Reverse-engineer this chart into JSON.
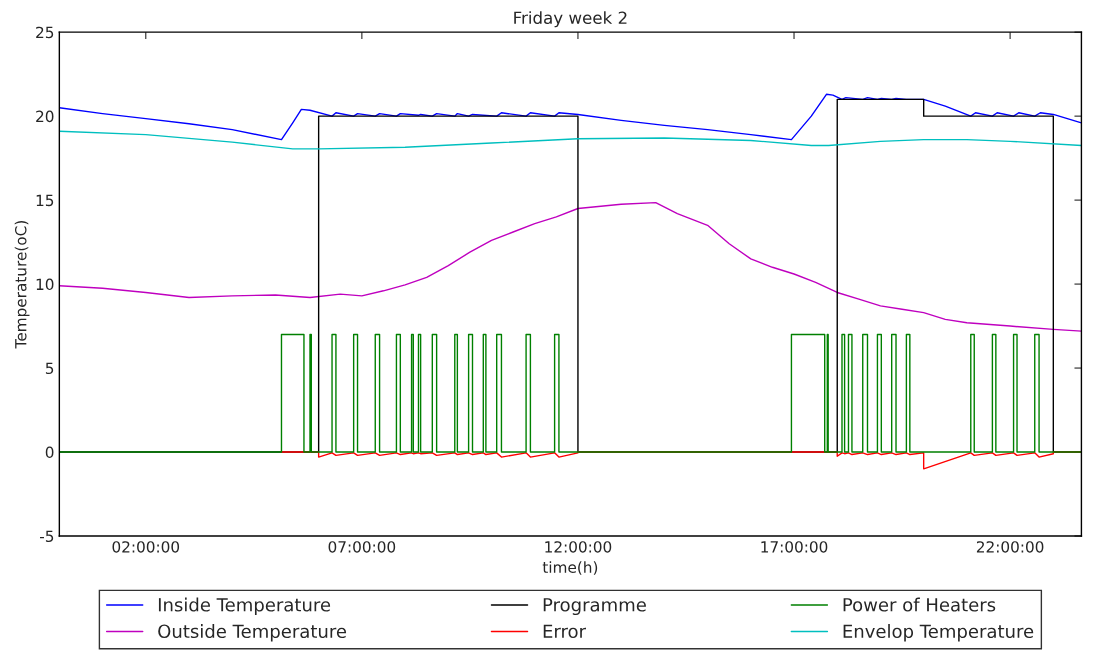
{
  "chart_data": {
    "type": "line",
    "title": "Friday week 2",
    "xlabel": "time(h)",
    "ylabel": "Temperature(oC)",
    "xlim": [
      0,
      23.65
    ],
    "ylim": [
      -5,
      25
    ],
    "xticks": [
      {
        "value": 2,
        "label": "02:00:00"
      },
      {
        "value": 7,
        "label": "07:00:00"
      },
      {
        "value": 12,
        "label": "12:00:00"
      },
      {
        "value": 17,
        "label": "17:00:00"
      },
      {
        "value": 22,
        "label": "22:00:00"
      }
    ],
    "yticks": [
      -5,
      0,
      5,
      10,
      15,
      20,
      25
    ],
    "grid": false,
    "legend": "bottom",
    "series": [
      {
        "name": "Inside Temperature",
        "color": "#0000ff",
        "x": [
          0,
          1,
          2,
          3,
          4,
          5.14,
          5.4,
          5.6,
          5.8,
          6.31,
          6.4,
          6.81,
          6.9,
          7.31,
          7.41,
          7.8,
          7.89,
          8.31,
          8.36,
          8.63,
          8.73,
          9.15,
          9.21,
          9.47,
          9.56,
          10.12,
          10.23,
          10.8,
          10.9,
          11.46,
          11.56,
          12,
          13,
          14,
          15,
          16,
          16.94,
          17.4,
          17.75,
          17.9,
          18.11,
          18.2,
          18.59,
          18.7,
          18.93,
          19.02,
          19.26,
          19.36,
          19.6,
          20,
          20.5,
          21.09,
          21.2,
          21.59,
          21.7,
          22.08,
          22.2,
          22.57,
          22.7,
          23,
          23.65
        ],
        "values": [
          20.5,
          20.15,
          19.85,
          19.55,
          19.2,
          18.6,
          19.6,
          20.4,
          20.35,
          20,
          20.2,
          20,
          20.15,
          20,
          20.15,
          20,
          20.15,
          20.05,
          20.1,
          20,
          20.15,
          20,
          20.15,
          20,
          20.1,
          20,
          20.2,
          20,
          20.2,
          20,
          20.2,
          20.1,
          19.75,
          19.45,
          19.2,
          18.9,
          18.6,
          20,
          21.3,
          21.25,
          21,
          21.1,
          21,
          21.1,
          21,
          21.05,
          21,
          21.05,
          21,
          21,
          20.6,
          20,
          20.2,
          20,
          20.2,
          20,
          20.2,
          20,
          20.2,
          20.1,
          19.6
        ]
      },
      {
        "name": "Outside Temperature",
        "color": "#bf00bf",
        "x": [
          0,
          1,
          2,
          3,
          4,
          5,
          5.8,
          6.5,
          7,
          7.5,
          8,
          8.5,
          9,
          9.5,
          10,
          10.5,
          11,
          11.5,
          12,
          13,
          13.8,
          14.3,
          15,
          15.5,
          16,
          16.5,
          17,
          17.5,
          18,
          18.5,
          19,
          19.5,
          20,
          20.5,
          21,
          22,
          23,
          23.65
        ],
        "values": [
          9.9,
          9.75,
          9.5,
          9.2,
          9.3,
          9.35,
          9.2,
          9.4,
          9.3,
          9.6,
          9.95,
          10.4,
          11.1,
          11.9,
          12.6,
          13.1,
          13.6,
          14,
          14.5,
          14.75,
          14.85,
          14.2,
          13.5,
          12.4,
          11.5,
          11,
          10.6,
          10.1,
          9.5,
          9.1,
          8.7,
          8.5,
          8.3,
          7.9,
          7.7,
          7.5,
          7.3,
          7.2
        ]
      },
      {
        "name": "Programme",
        "color": "#000000",
        "type": "step",
        "x": [
          0,
          6,
          12,
          18,
          20,
          23,
          23.65
        ],
        "values": [
          0,
          20,
          0,
          21,
          20,
          0,
          0
        ]
      },
      {
        "name": "Error",
        "color": "#ff0000",
        "x": [
          5.14,
          6,
          6,
          6.31,
          6.4,
          6.81,
          6.9,
          7.31,
          7.41,
          7.8,
          7.89,
          8.15,
          8.19,
          8.31,
          8.36,
          8.63,
          8.73,
          9.15,
          9.21,
          9.47,
          9.56,
          9.81,
          9.87,
          10.12,
          10.23,
          10.8,
          10.9,
          11.46,
          11.56,
          12,
          12,
          18,
          18,
          18.11,
          18.17,
          18.26,
          18.34,
          18.59,
          18.7,
          18.93,
          19.02,
          19.26,
          19.36,
          19.6,
          19.68,
          20,
          20,
          21.09,
          21.17,
          21.59,
          21.67,
          22.08,
          22.16,
          22.57,
          22.67,
          23,
          23,
          23.65
        ],
        "values": [
          0,
          0,
          -0.3,
          -0.05,
          -0.2,
          -0.05,
          -0.2,
          -0.05,
          -0.2,
          -0.05,
          -0.15,
          -0.05,
          -0.1,
          -0.05,
          -0.1,
          -0.05,
          -0.2,
          -0.05,
          -0.15,
          -0.05,
          -0.15,
          -0.05,
          -0.15,
          -0.05,
          -0.3,
          -0.05,
          -0.3,
          -0.05,
          -0.3,
          -0.05,
          0,
          0,
          -0.25,
          -0.05,
          -0.1,
          -0.05,
          -0.15,
          -0.05,
          -0.15,
          -0.05,
          -0.15,
          -0.05,
          -0.15,
          -0.05,
          -0.15,
          -0.05,
          -1,
          -0.05,
          -0.2,
          -0.05,
          -0.2,
          -0.05,
          -0.2,
          -0.05,
          -0.3,
          -0.1,
          0,
          0
        ]
      },
      {
        "name": "Power of Heaters",
        "color": "#008000",
        "type": "step",
        "x": [
          0,
          5.14,
          5.66,
          5.8,
          5.83,
          6.31,
          6.4,
          6.81,
          6.9,
          7.31,
          7.41,
          7.8,
          7.89,
          8.15,
          8.19,
          8.31,
          8.36,
          8.63,
          8.73,
          9.15,
          9.21,
          9.47,
          9.56,
          9.81,
          9.87,
          10.12,
          10.23,
          10.8,
          10.9,
          11.46,
          11.56,
          16.94,
          17.71,
          17.77,
          17.79,
          18.11,
          18.17,
          18.26,
          18.34,
          18.59,
          18.7,
          18.93,
          19.02,
          19.26,
          19.36,
          19.6,
          19.68,
          21.09,
          21.17,
          21.59,
          21.67,
          22.08,
          22.16,
          22.57,
          22.67,
          23.65
        ],
        "values": [
          0,
          7,
          0,
          7,
          0,
          7,
          0,
          7,
          0,
          7,
          0,
          7,
          0,
          7,
          0,
          7,
          0,
          7,
          0,
          7,
          0,
          7,
          0,
          7,
          0,
          7,
          0,
          7,
          0,
          7,
          0,
          7,
          0,
          7,
          0,
          7,
          0,
          7,
          0,
          7,
          0,
          7,
          0,
          7,
          0,
          7,
          0,
          7,
          0,
          7,
          0,
          7,
          0,
          7,
          0,
          0
        ]
      },
      {
        "name": "Envelop Temperature",
        "color": "#00bfbf",
        "x": [
          0,
          2,
          4,
          5.4,
          6,
          8,
          10,
          12,
          14,
          16,
          17.4,
          17.8,
          19,
          20,
          21,
          22,
          23.65
        ],
        "values": [
          19.1,
          18.9,
          18.45,
          18.05,
          18.05,
          18.15,
          18.4,
          18.65,
          18.7,
          18.55,
          18.25,
          18.25,
          18.5,
          18.6,
          18.6,
          18.5,
          18.25
        ]
      }
    ]
  }
}
